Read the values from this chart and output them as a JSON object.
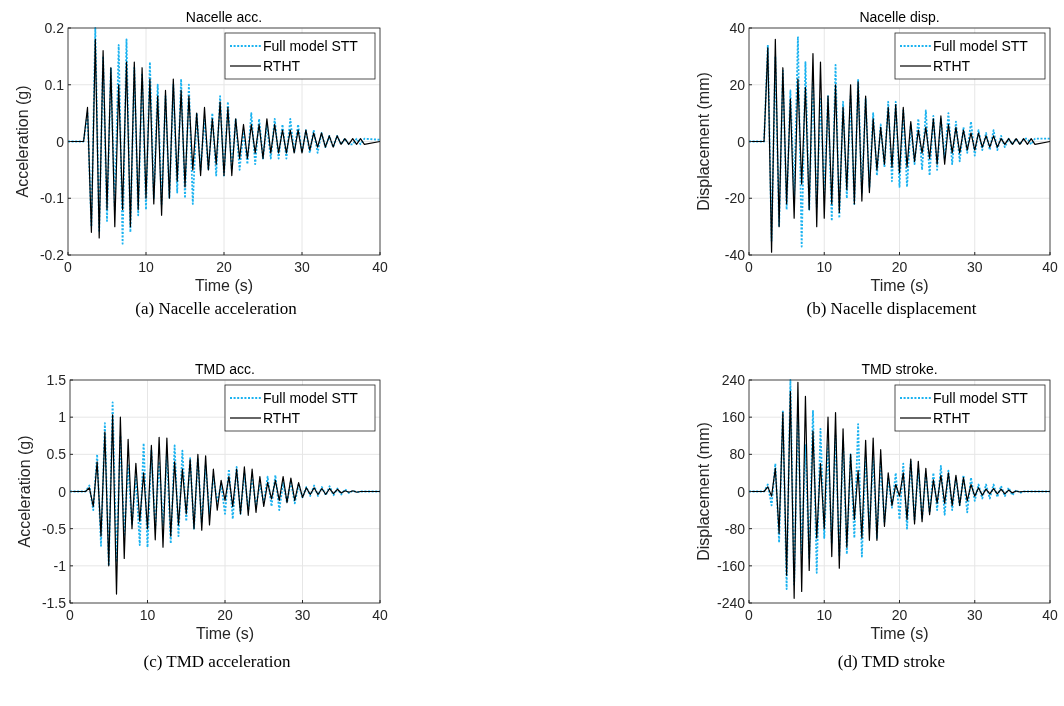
{
  "chart_data": [
    {
      "type": "line",
      "title": "Nacelle acc.",
      "xlabel": "Time (s)",
      "ylabel": "Acceleration (g)",
      "xlim": [
        0,
        40
      ],
      "xticks": [
        0,
        10,
        20,
        30,
        40
      ],
      "ylim": [
        -0.2,
        0.2
      ],
      "yticks": [
        -0.2,
        -0.1,
        0,
        0.1,
        0.2
      ],
      "grid": true,
      "legend": "top right",
      "annotations": [
        "(a) Nacelle acceleration"
      ],
      "x": [
        0,
        2,
        2.5,
        3,
        3.5,
        4,
        4.5,
        5,
        5.5,
        6,
        6.5,
        7,
        7.5,
        8,
        8.5,
        9,
        9.5,
        10,
        10.5,
        11,
        11.5,
        12,
        12.5,
        13,
        13.5,
        14,
        14.5,
        15,
        15.5,
        16,
        16.5,
        17,
        17.5,
        18,
        18.5,
        19,
        19.5,
        20,
        20.5,
        21,
        21.5,
        22,
        22.5,
        23,
        23.5,
        24,
        24.5,
        25,
        25.5,
        26,
        26.5,
        27,
        27.5,
        28,
        28.5,
        29,
        29.5,
        30,
        30.5,
        31,
        31.5,
        32,
        32.5,
        33,
        33.5,
        34,
        34.5,
        35,
        35.5,
        36,
        36.5,
        37,
        37.5,
        38,
        40
      ],
      "series": [
        {
          "name": "Full model STT",
          "color": "#1ab2f0",
          "line_style": "dotted",
          "values": [
            0,
            0,
            0.05,
            -0.15,
            0.2,
            -0.16,
            0.15,
            -0.14,
            0.13,
            -0.12,
            0.17,
            -0.18,
            0.18,
            -0.16,
            0.13,
            -0.13,
            0.12,
            -0.12,
            0.14,
            -0.1,
            0.1,
            -0.11,
            0.08,
            -0.1,
            0.1,
            -0.09,
            0.11,
            -0.1,
            0.1,
            -0.11,
            0.05,
            -0.05,
            0.04,
            -0.05,
            0.05,
            -0.06,
            0.08,
            -0.06,
            0.07,
            -0.05,
            0.04,
            -0.05,
            0.02,
            -0.04,
            0.05,
            -0.04,
            0.04,
            -0.03,
            0.03,
            -0.03,
            0.04,
            -0.03,
            0.03,
            -0.03,
            0.04,
            -0.02,
            0.03,
            -0.02,
            0.02,
            -0.02,
            0.02,
            -0.02,
            0.015,
            -0.01,
            0.01,
            -0.01,
            0.01,
            -0.005,
            0.005,
            -0.005,
            -0.005,
            0.005,
            -0.005,
            0.005,
            0.003
          ]
        },
        {
          "name": "RTHT",
          "color": "#000000",
          "line_style": "solid",
          "values": [
            0,
            0,
            0.06,
            -0.16,
            0.18,
            -0.17,
            0.16,
            -0.12,
            0.13,
            -0.15,
            0.1,
            -0.12,
            0.14,
            -0.15,
            0.14,
            -0.12,
            0.13,
            -0.1,
            0.11,
            -0.11,
            0.08,
            -0.13,
            0.09,
            -0.1,
            0.11,
            -0.07,
            0.09,
            -0.08,
            0.08,
            -0.05,
            0.05,
            -0.06,
            0.06,
            -0.05,
            0.04,
            -0.04,
            0.07,
            -0.06,
            0.06,
            -0.06,
            0.04,
            -0.03,
            0.03,
            -0.03,
            0.03,
            -0.02,
            0.03,
            -0.03,
            0.04,
            -0.02,
            0.03,
            -0.02,
            0.02,
            -0.02,
            0.02,
            -0.02,
            0.02,
            -0.02,
            0.02,
            -0.015,
            0.015,
            -0.01,
            0.015,
            -0.01,
            0.01,
            -0.01,
            0.01,
            -0.005,
            0.005,
            -0.005,
            0.005,
            -0.005,
            0.005,
            -0.005,
            0
          ]
        }
      ]
    },
    {
      "type": "line",
      "title": "Nacelle disp.",
      "xlabel": "Time (s)",
      "ylabel": "Displacement (mm)",
      "xlim": [
        0,
        40
      ],
      "xticks": [
        0,
        10,
        20,
        30,
        40
      ],
      "ylim": [
        -40,
        40
      ],
      "yticks": [
        -40,
        -20,
        0,
        20,
        40
      ],
      "grid": true,
      "legend": "top right",
      "annotations": [
        "(b) Nacelle displacement"
      ],
      "x": [
        0,
        2,
        2.5,
        3,
        3.5,
        4,
        4.5,
        5,
        5.5,
        6,
        6.5,
        7,
        7.5,
        8,
        8.5,
        9,
        9.5,
        10,
        10.5,
        11,
        11.5,
        12,
        12.5,
        13,
        13.5,
        14,
        14.5,
        15,
        15.5,
        16,
        16.5,
        17,
        17.5,
        18,
        18.5,
        19,
        19.5,
        20,
        20.5,
        21,
        21.5,
        22,
        22.5,
        23,
        23.5,
        24,
        24.5,
        25,
        25.5,
        26,
        26.5,
        27,
        27.5,
        28,
        28.5,
        29,
        29.5,
        30,
        30.5,
        31,
        31.5,
        32,
        32.5,
        33,
        33.5,
        34,
        34.5,
        35,
        35.5,
        36,
        36.5,
        37,
        37.5,
        38,
        40
      ],
      "series": [
        {
          "name": "Full model STT",
          "color": "#1ab2f0",
          "line_style": "dotted",
          "values": [
            0,
            0,
            34,
            -35,
            30,
            -30,
            25,
            -24,
            18,
            -20,
            37,
            -37,
            28,
            -24,
            22,
            -23,
            15,
            -18,
            16,
            -28,
            27,
            -27,
            14,
            -20,
            16,
            -22,
            22,
            -18,
            15,
            -16,
            10,
            -12,
            6,
            -9,
            14,
            -14,
            14,
            -16,
            11,
            -16,
            6,
            -8,
            8,
            -10,
            11,
            -12,
            9,
            -10,
            8,
            -6,
            10,
            -8,
            7,
            -7,
            5,
            -4,
            7,
            -5,
            4,
            -3,
            3,
            -3,
            4,
            -3,
            2,
            -2,
            1,
            -1,
            1,
            -1,
            1,
            1,
            -1,
            1,
            1
          ]
        },
        {
          "name": "RTHT",
          "color": "#000000",
          "line_style": "solid",
          "values": [
            0,
            0,
            33,
            -39,
            36,
            -30,
            26,
            -22,
            15,
            -27,
            22,
            -15,
            19,
            -24,
            31,
            -30,
            28,
            -27,
            16,
            -22,
            20,
            -25,
            12,
            -17,
            20,
            -22,
            21,
            -21,
            16,
            -18,
            8,
            -10,
            5,
            -8,
            12,
            -9,
            13,
            -11,
            12,
            -9,
            7,
            -7,
            4,
            -4,
            5,
            -6,
            8,
            -8,
            9,
            -8,
            6,
            -4,
            5,
            -4,
            4,
            -3,
            3,
            -3,
            3,
            -2,
            2,
            -2,
            2,
            -2,
            1,
            -1,
            1,
            -1,
            1,
            -1,
            1,
            -1,
            1,
            -1,
            0
          ]
        }
      ]
    },
    {
      "type": "line",
      "title": "TMD acc.",
      "xlabel": "Time (s)",
      "ylabel": "Acceleration (g)",
      "xlim": [
        0,
        40
      ],
      "xticks": [
        0,
        10,
        20,
        30,
        40
      ],
      "ylim": [
        -1.5,
        1.5
      ],
      "yticks": [
        -1.5,
        -1,
        -0.5,
        0,
        0.5,
        1,
        1.5
      ],
      "grid": true,
      "legend": "top right",
      "annotations": [
        "(c) TMD acceleration"
      ],
      "x": [
        0,
        2,
        2.5,
        3,
        3.5,
        4,
        4.5,
        5,
        5.5,
        6,
        6.5,
        7,
        7.5,
        8,
        8.5,
        9,
        9.5,
        10,
        10.5,
        11,
        11.5,
        12,
        12.5,
        13,
        13.5,
        14,
        14.5,
        15,
        15.5,
        16,
        16.5,
        17,
        17.5,
        18,
        18.5,
        19,
        19.5,
        20,
        20.5,
        21,
        21.5,
        22,
        22.5,
        23,
        23.5,
        24,
        24.5,
        25,
        25.5,
        26,
        26.5,
        27,
        27.5,
        28,
        28.5,
        29,
        29.5,
        30,
        30.5,
        31,
        31.5,
        32,
        32.5,
        33,
        33.5,
        34,
        34.5,
        35,
        35.5,
        36,
        36.5,
        37,
        37.5,
        38,
        40
      ],
      "series": [
        {
          "name": "Full model STT",
          "color": "#1ab2f0",
          "line_style": "dotted",
          "values": [
            0,
            0,
            0.08,
            -0.25,
            0.5,
            -0.73,
            0.92,
            -1,
            1.2,
            -0.95,
            0.75,
            -0.6,
            0.35,
            -0.45,
            0.2,
            -0.72,
            0.65,
            -0.75,
            0.55,
            -0.5,
            0.4,
            -0.45,
            0.5,
            -0.7,
            0.62,
            -0.6,
            0.55,
            -0.4,
            0.45,
            -0.5,
            0.45,
            -0.42,
            0.35,
            -0.3,
            0.2,
            -0.15,
            0.1,
            -0.3,
            0.3,
            -0.37,
            0.33,
            -0.3,
            0.25,
            -0.25,
            0.2,
            -0.2,
            0.1,
            -0.15,
            0.2,
            -0.2,
            0.22,
            -0.25,
            0.12,
            -0.15,
            0.14,
            -0.16,
            0.1,
            -0.08,
            0.06,
            -0.06,
            0.08,
            -0.06,
            0.06,
            -0.05,
            0.07,
            -0.05,
            0.04,
            -0.04,
            0.03,
            -0.02,
            0.01,
            -0.01,
            0,
            0,
            0
          ]
        },
        {
          "name": "RTHT",
          "color": "#000000",
          "line_style": "solid",
          "values": [
            0,
            0,
            0.05,
            -0.2,
            0.4,
            -0.6,
            0.8,
            -1,
            1.03,
            -1.38,
            1,
            -0.9,
            0.7,
            -0.5,
            0.38,
            -0.4,
            0.25,
            -0.5,
            0.62,
            -0.65,
            0.73,
            -0.75,
            0.72,
            -0.6,
            0.4,
            -0.45,
            0.3,
            -0.3,
            0.43,
            -0.5,
            0.5,
            -0.52,
            0.48,
            -0.45,
            0.3,
            -0.25,
            0.15,
            -0.12,
            0.2,
            -0.2,
            0.3,
            -0.3,
            0.33,
            -0.32,
            0.3,
            -0.28,
            0.2,
            -0.2,
            0.12,
            -0.1,
            0.15,
            -0.12,
            0.2,
            -0.15,
            0.18,
            -0.12,
            0.12,
            -0.08,
            0.05,
            -0.04,
            0.05,
            -0.04,
            0.04,
            -0.04,
            0.04,
            -0.03,
            0.03,
            -0.02,
            0.01,
            -0.01,
            0.01,
            -0.01,
            0,
            0,
            0
          ]
        }
      ]
    },
    {
      "type": "line",
      "title": "TMD stroke.",
      "xlabel": "Time (s)",
      "ylabel": "Displacement (mm)",
      "xlim": [
        0,
        40
      ],
      "xticks": [
        0,
        10,
        20,
        30,
        40
      ],
      "ylim": [
        -240,
        240
      ],
      "yticks": [
        -240,
        -160,
        -80,
        0,
        80,
        160,
        240
      ],
      "grid": true,
      "legend": "top right",
      "annotations": [
        "(d) TMD stroke"
      ],
      "x": [
        0,
        2,
        2.5,
        3,
        3.5,
        4,
        4.5,
        5,
        5.5,
        6,
        6.5,
        7,
        7.5,
        8,
        8.5,
        9,
        9.5,
        10,
        10.5,
        11,
        11.5,
        12,
        12.5,
        13,
        13.5,
        14,
        14.5,
        15,
        15.5,
        16,
        16.5,
        17,
        17.5,
        18,
        18.5,
        19,
        19.5,
        20,
        20.5,
        21,
        21.5,
        22,
        22.5,
        23,
        23.5,
        24,
        24.5,
        25,
        25.5,
        26,
        26.5,
        27,
        27.5,
        28,
        28.5,
        29,
        29.5,
        30,
        30.5,
        31,
        31.5,
        32,
        32.5,
        33,
        33.5,
        34,
        34.5,
        35,
        35.5,
        36,
        36.5,
        37,
        37.5,
        38,
        40
      ],
      "series": [
        {
          "name": "Full model STT",
          "color": "#1ab2f0",
          "line_style": "dotted",
          "values": [
            0,
            0,
            15,
            -30,
            60,
            -110,
            175,
            -210,
            240,
            -200,
            175,
            -135,
            100,
            -145,
            175,
            -175,
            135,
            -100,
            100,
            -110,
            120,
            -140,
            110,
            -135,
            80,
            -100,
            145,
            -140,
            75,
            -80,
            75,
            -100,
            60,
            -65,
            30,
            -35,
            40,
            -60,
            60,
            -80,
            65,
            -60,
            50,
            -60,
            40,
            -45,
            40,
            -40,
            55,
            -50,
            45,
            -40,
            30,
            -30,
            35,
            -45,
            30,
            -20,
            15,
            -15,
            15,
            -15,
            15,
            -12,
            12,
            -10,
            8,
            -8,
            3,
            -3,
            0,
            0,
            0,
            0,
            0
          ]
        },
        {
          "name": "RTHT",
          "color": "#000000",
          "line_style": "solid",
          "values": [
            0,
            0,
            10,
            -10,
            50,
            -90,
            170,
            -180,
            215,
            -230,
            235,
            -215,
            205,
            -170,
            130,
            -100,
            60,
            -80,
            160,
            -140,
            170,
            -165,
            135,
            -120,
            80,
            -60,
            45,
            -100,
            110,
            -105,
            115,
            -105,
            90,
            -75,
            40,
            -30,
            15,
            -10,
            40,
            -60,
            70,
            -70,
            65,
            -65,
            50,
            -50,
            25,
            -25,
            35,
            -25,
            40,
            -30,
            35,
            -30,
            30,
            -20,
            15,
            -10,
            8,
            -8,
            5,
            -5,
            6,
            -5,
            5,
            -5,
            3,
            -3,
            1,
            -1,
            0,
            0,
            0,
            0,
            0
          ]
        }
      ]
    }
  ]
}
